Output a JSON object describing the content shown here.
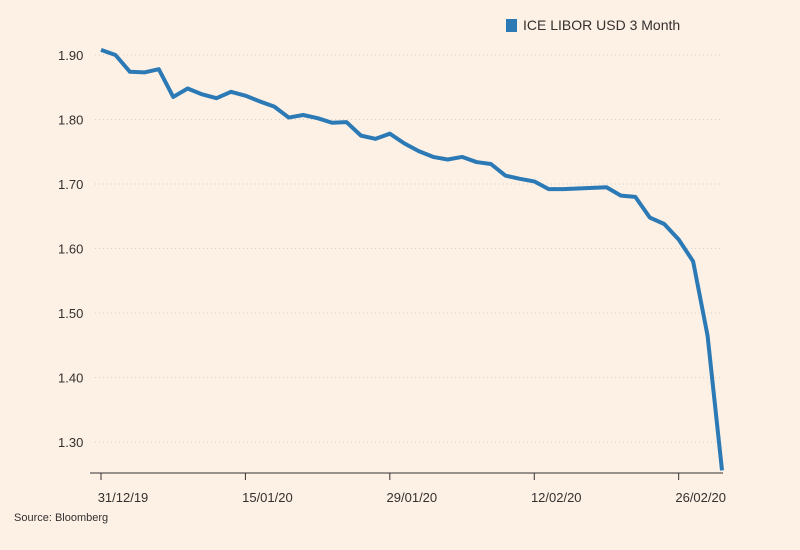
{
  "chart_data": {
    "type": "line",
    "title": "",
    "xlabel": "",
    "ylabel": "",
    "ylim": [
      1.25,
      1.95
    ],
    "y_ticks": [
      1.3,
      1.4,
      1.5,
      1.6,
      1.7,
      1.8,
      1.9
    ],
    "y_tick_labels": [
      "1.30",
      "1.40",
      "1.50",
      "1.60",
      "1.70",
      "1.80",
      "1.90"
    ],
    "x_ticks": [
      "31/12/19",
      "15/01/20",
      "29/01/20",
      "12/02/20",
      "26/02/20"
    ],
    "x_tick_index": [
      0,
      10,
      20,
      30,
      40
    ],
    "grid": true,
    "legend": "top-right",
    "source": "Source: Bloomberg",
    "series": [
      {
        "name": "ICE LIBOR USD 3 Month",
        "color": "#2b79b5",
        "values": [
          1.908,
          1.9,
          1.874,
          1.873,
          1.878,
          1.835,
          1.848,
          1.839,
          1.833,
          1.843,
          1.837,
          1.828,
          1.82,
          1.803,
          1.807,
          1.802,
          1.795,
          1.796,
          1.775,
          1.77,
          1.778,
          1.763,
          1.751,
          1.742,
          1.738,
          1.742,
          1.734,
          1.731,
          1.713,
          1.708,
          1.704,
          1.692,
          1.692,
          1.693,
          1.694,
          1.695,
          1.682,
          1.68,
          1.648,
          1.638,
          1.614,
          1.58,
          1.465,
          1.256
        ]
      }
    ]
  }
}
